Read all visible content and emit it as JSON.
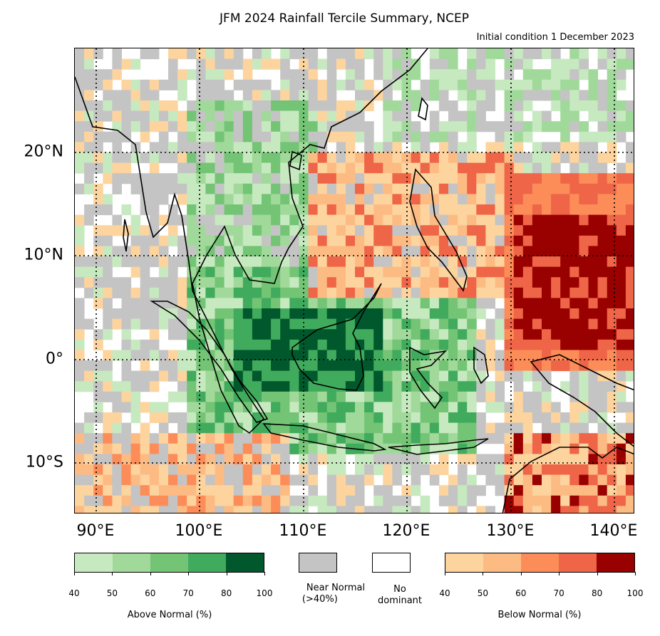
{
  "title": "JFM 2024 Rainfall Tercile Summary, NCEP",
  "subtitle": "Initial condition 1 December 2023",
  "map": {
    "lon_range": [
      88,
      142
    ],
    "lat_range": [
      -15,
      30
    ],
    "lat_ticks": [
      "20°N",
      "10°N",
      "0°",
      "10°S"
    ],
    "lon_ticks": [
      "90°E",
      "100°E",
      "110°E",
      "120°E",
      "130°E",
      "140°E"
    ],
    "gridlines": "dotted"
  },
  "legend": {
    "above": {
      "label": "Above Normal (%)",
      "ticks": [
        "40",
        "50",
        "60",
        "70",
        "80",
        "100"
      ],
      "colors": [
        "#c7e9c0",
        "#a1d99b",
        "#74c476",
        "#41ab5d",
        "#00582c"
      ]
    },
    "near": {
      "label": "Near Normal (>40%)",
      "label_line1": "Near Normal",
      "label_line2": "(>40%)",
      "color": "#c4c4c4"
    },
    "none": {
      "label": "No dominant",
      "label_line1": "No",
      "label_line2": "dominant",
      "color": "#ffffff"
    },
    "below": {
      "label": "Below Normal (%)",
      "ticks": [
        "40",
        "50",
        "60",
        "70",
        "80",
        "100"
      ],
      "colors": [
        "#fdd49e",
        "#fdbb84",
        "#fc8d59",
        "#ef6548",
        "#990000"
      ]
    }
  }
}
